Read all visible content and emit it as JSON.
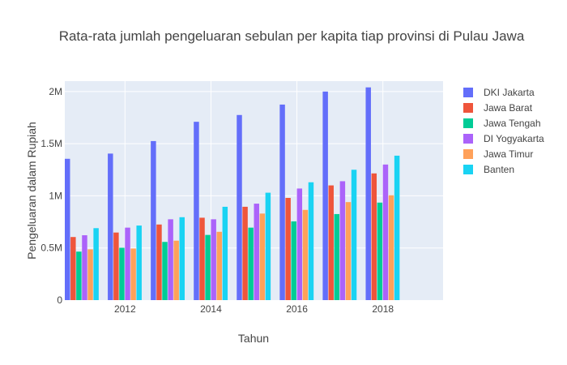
{
  "chart_data": {
    "type": "bar",
    "title": "Rata-rata jumlah pengeluaran sebulan per kapita tiap provinsi di Pulau Jawa",
    "xlabel": "Tahun",
    "ylabel": "Pengeluaran dalam Rupiah",
    "x": [
      2011,
      2012,
      2013,
      2014,
      2015,
      2016,
      2017,
      2018
    ],
    "xlim": [
      2010.6,
      2019.4
    ],
    "x_ticks": [
      2012,
      2014,
      2016,
      2018
    ],
    "x_tick_labels": [
      "2012",
      "2014",
      "2016",
      "2018"
    ],
    "ylim": [
      0,
      2100000
    ],
    "y_ticks": [
      0,
      500000,
      1000000,
      1500000,
      2000000
    ],
    "y_tick_labels": [
      "0",
      "0.5M",
      "1M",
      "1.5M",
      "2M"
    ],
    "grid": true,
    "legend_position": "right",
    "series": [
      {
        "name": "DKI Jakarta",
        "color": "#636efa",
        "values": [
          1355000,
          1405000,
          1525000,
          1710000,
          1775000,
          1875000,
          2000000,
          2040000
        ]
      },
      {
        "name": "Jawa Barat",
        "color": "#ef553b",
        "values": [
          605000,
          648000,
          725000,
          790000,
          895000,
          980000,
          1100000,
          1215000
        ]
      },
      {
        "name": "Jawa Tengah",
        "color": "#00cc96",
        "values": [
          465000,
          502000,
          558000,
          625000,
          695000,
          755000,
          825000,
          935000
        ]
      },
      {
        "name": "DI Yogyakarta",
        "color": "#ab63fa",
        "values": [
          622000,
          695000,
          775000,
          775000,
          925000,
          1070000,
          1140000,
          1300000
        ]
      },
      {
        "name": "Jawa Timur",
        "color": "#ffa15a",
        "values": [
          487000,
          495000,
          570000,
          655000,
          830000,
          865000,
          940000,
          1005000
        ]
      },
      {
        "name": "Banten",
        "color": "#19d3f3",
        "values": [
          690000,
          715000,
          795000,
          895000,
          1030000,
          1130000,
          1250000,
          1385000
        ]
      }
    ]
  }
}
